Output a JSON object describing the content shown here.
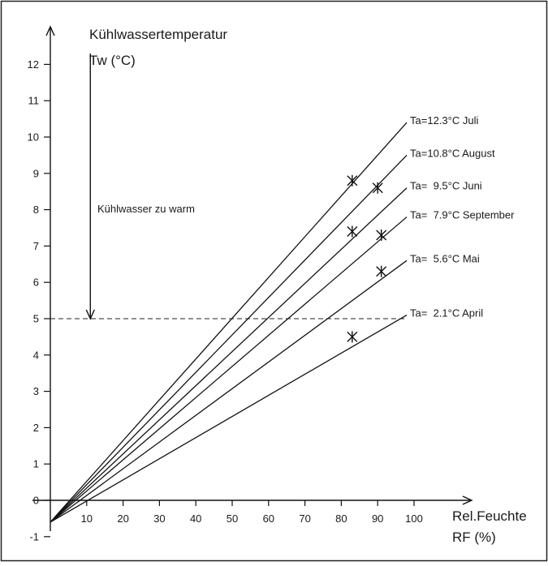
{
  "chart_data": {
    "type": "line",
    "title": "",
    "ylabel_line1": "Kühlwassertemperatur",
    "ylabel_line2": "Tw (°C)",
    "xlabel_line1": "Rel.Feuchte",
    "xlabel_line2": "RF (%)",
    "xlim": [
      0,
      100
    ],
    "ylim": [
      -1,
      12
    ],
    "x_ticks": [
      10,
      20,
      30,
      40,
      50,
      60,
      70,
      80,
      90,
      100
    ],
    "y_ticks": [
      -1,
      0,
      1,
      2,
      3,
      4,
      5,
      6,
      7,
      8,
      9,
      10,
      11,
      12
    ],
    "grid": false,
    "series": [
      {
        "name": "Ta=12.3°C Juli",
        "x": [
          0,
          98
        ],
        "y": [
          -0.6,
          10.4
        ],
        "marker": {
          "x": 83,
          "y": 8.8
        }
      },
      {
        "name": "Ta=10.8°C August",
        "x": [
          0,
          98
        ],
        "y": [
          -0.6,
          9.5
        ],
        "marker": {
          "x": 90,
          "y": 8.6
        }
      },
      {
        "name": "Ta=  9.5°C Juni",
        "x": [
          0,
          98
        ],
        "y": [
          -0.6,
          8.6
        ],
        "marker": {
          "x": 83,
          "y": 7.4
        }
      },
      {
        "name": "Ta=  7.9°C September",
        "x": [
          0,
          98
        ],
        "y": [
          -0.6,
          7.8
        ],
        "marker": {
          "x": 91,
          "y": 7.3
        }
      },
      {
        "name": "Ta=  5.6°C Mai",
        "x": [
          0,
          98
        ],
        "y": [
          -0.6,
          6.6
        ],
        "marker": {
          "x": 91,
          "y": 6.3
        }
      },
      {
        "name": "Ta=  2.1°C April",
        "x": [
          0,
          98
        ],
        "y": [
          -0.6,
          5.1
        ],
        "marker": {
          "x": 83,
          "y": 4.5
        }
      }
    ],
    "threshold": {
      "y": 5,
      "x_end": 98
    },
    "annotation": {
      "text": "Kühlwasser zu warm",
      "arrow_x": 11,
      "arrow_from_y": 12.3,
      "arrow_to_y": 5
    }
  }
}
